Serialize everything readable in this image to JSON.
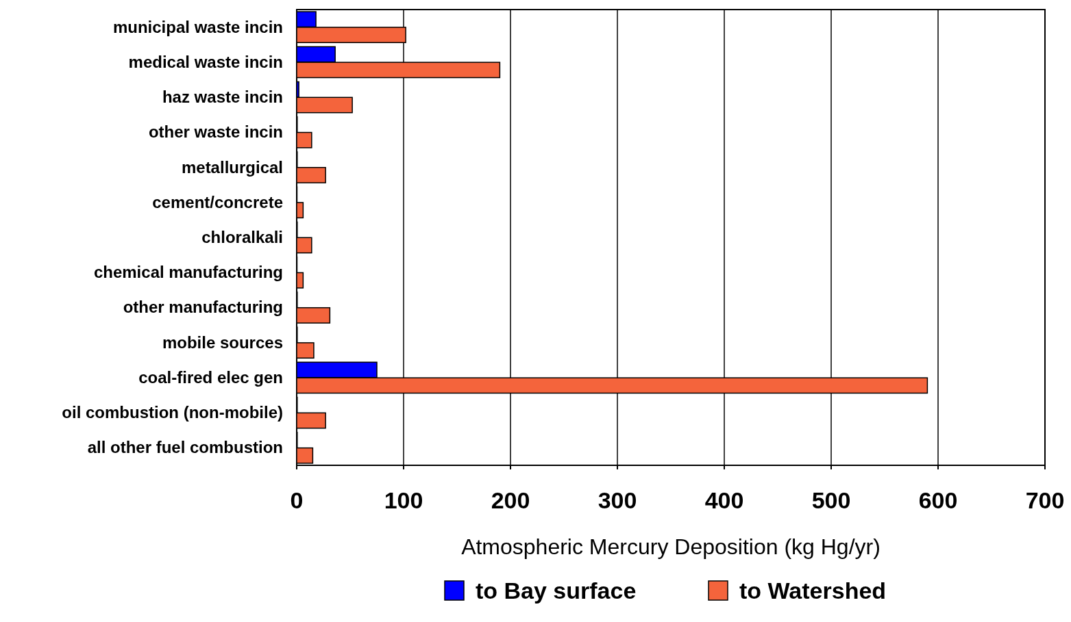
{
  "chart_data": {
    "type": "bar",
    "orientation": "horizontal",
    "xlabel": "Atmospheric Mercury Deposition (kg Hg/yr)",
    "categories": [
      "municipal waste incin",
      "medical waste incin",
      "haz waste incin",
      "other waste incin",
      "metallurgical",
      "cement/concrete",
      "chloralkali",
      "chemical manufacturing",
      "other manufacturing",
      "mobile sources",
      "coal-fired elec gen",
      "oil combustion (non-mobile)",
      "all other fuel combustion"
    ],
    "series": [
      {
        "name": "to Bay surface",
        "color": "#0000ff",
        "values": [
          18,
          36,
          2,
          0.5,
          0.5,
          0.3,
          0.5,
          0.3,
          0.5,
          0.5,
          75,
          0.5,
          0.5
        ]
      },
      {
        "name": "to Watershed",
        "color": "#f4643c",
        "values": [
          102,
          190,
          52,
          14,
          27,
          6,
          14,
          6,
          31,
          16,
          590,
          27,
          15
        ]
      }
    ],
    "xlim": [
      0,
      700
    ],
    "xticks": [
      0,
      100,
      200,
      300,
      400,
      500,
      600,
      700
    ],
    "grid": "x",
    "legend": "bottom"
  }
}
